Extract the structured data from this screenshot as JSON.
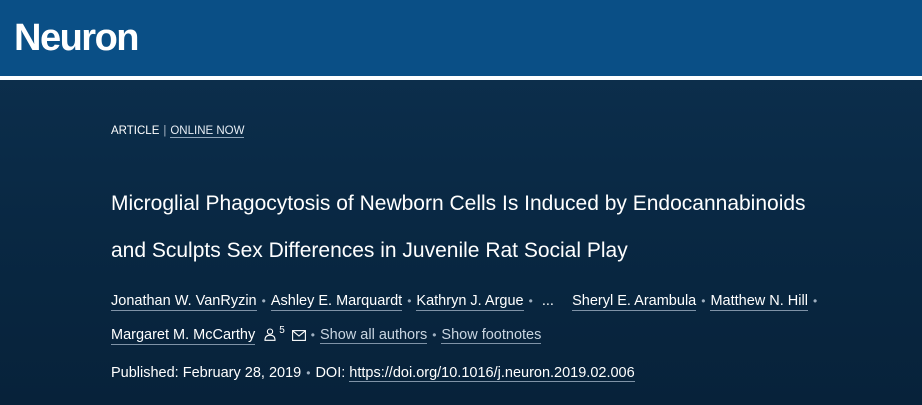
{
  "header": {
    "logo_text": "Neuron"
  },
  "article": {
    "type": "ARTICLE",
    "separator": "|",
    "status": "ONLINE NOW",
    "title_line1": "Microglial Phagocytosis of Newborn Cells Is Induced by Endocannabinoids",
    "title_line2": "and Sculpts Sex Differences in Juvenile Rat Social Play",
    "authors": [
      "Jonathan W. VanRyzin",
      "Ashley E. Marquardt",
      "Kathryn J. Argue",
      "Sheryl E. Arambula",
      "Matthew N. Hill",
      "Margaret M. McCarthy"
    ],
    "ellipsis": "...",
    "author_sup": "5",
    "show_all_authors": "Show all authors",
    "show_footnotes": "Show footnotes",
    "published_label": "Published: February 28, 2019",
    "doi_label": "DOI:",
    "doi_url": "https://doi.org/10.1016/j.neuron.2019.02.006"
  },
  "colors": {
    "masthead": "#0a4f86",
    "background": "#0b2d4a"
  }
}
